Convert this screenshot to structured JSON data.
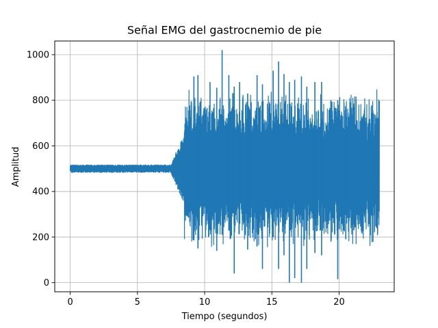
{
  "chart_data": {
    "type": "line",
    "title": "Señal EMG del gastrocnemio de pie",
    "xlabel": "Tiempo (segundos)",
    "ylabel": "Amplitud",
    "xlim": [
      -1.15,
      24.1
    ],
    "ylim": [
      -40,
      1060
    ],
    "xticks": [
      0,
      5,
      10,
      15,
      20
    ],
    "yticks": [
      0,
      200,
      400,
      600,
      800,
      1000
    ],
    "grid": true,
    "color": "#1f77b4",
    "series": [
      {
        "segments": [
          {
            "t_start": 0.0,
            "t_end": 7.5,
            "center": 500,
            "min": 485,
            "max": 518
          },
          {
            "t_start": 7.5,
            "t_end": 8.0,
            "center": 500,
            "min": 470,
            "max": 530
          },
          {
            "t_start": 8.0,
            "t_end": 8.5,
            "center": 500,
            "min": 420,
            "max": 600
          },
          {
            "t_start": 8.5,
            "t_end": 23.0,
            "center": 500,
            "min": 0,
            "max": 1020
          }
        ],
        "spikes": [
          {
            "t": 9.2,
            "min": 185,
            "max": 905
          },
          {
            "t": 9.5,
            "min": 150,
            "max": 910
          },
          {
            "t": 10.4,
            "min": 240,
            "max": 880
          },
          {
            "t": 10.9,
            "min": 140,
            "max": 855
          },
          {
            "t": 11.3,
            "min": 210,
            "max": 1020
          },
          {
            "t": 11.8,
            "min": 230,
            "max": 910
          },
          {
            "t": 12.2,
            "min": 40,
            "max": 860
          },
          {
            "t": 12.6,
            "min": 260,
            "max": 880
          },
          {
            "t": 13.2,
            "min": 145,
            "max": 830
          },
          {
            "t": 13.9,
            "min": 160,
            "max": 910
          },
          {
            "t": 14.3,
            "min": 60,
            "max": 870
          },
          {
            "t": 15.1,
            "min": 200,
            "max": 930
          },
          {
            "t": 15.5,
            "min": 60,
            "max": 970
          },
          {
            "t": 15.9,
            "min": 120,
            "max": 915
          },
          {
            "t": 16.3,
            "min": 0,
            "max": 880
          },
          {
            "t": 16.7,
            "min": 20,
            "max": 890
          },
          {
            "t": 17.2,
            "min": 0,
            "max": 905
          },
          {
            "t": 17.6,
            "min": 60,
            "max": 860
          },
          {
            "t": 18.2,
            "min": 130,
            "max": 880
          },
          {
            "t": 18.7,
            "min": 120,
            "max": 880
          },
          {
            "t": 19.4,
            "min": 180,
            "max": 800
          },
          {
            "t": 19.9,
            "min": 15,
            "max": 800
          },
          {
            "t": 20.5,
            "min": 190,
            "max": 760
          },
          {
            "t": 21.1,
            "min": 230,
            "max": 770
          },
          {
            "t": 21.8,
            "min": 230,
            "max": 690
          },
          {
            "t": 22.3,
            "min": 210,
            "max": 700
          },
          {
            "t": 22.8,
            "min": 250,
            "max": 690
          }
        ]
      }
    ]
  }
}
